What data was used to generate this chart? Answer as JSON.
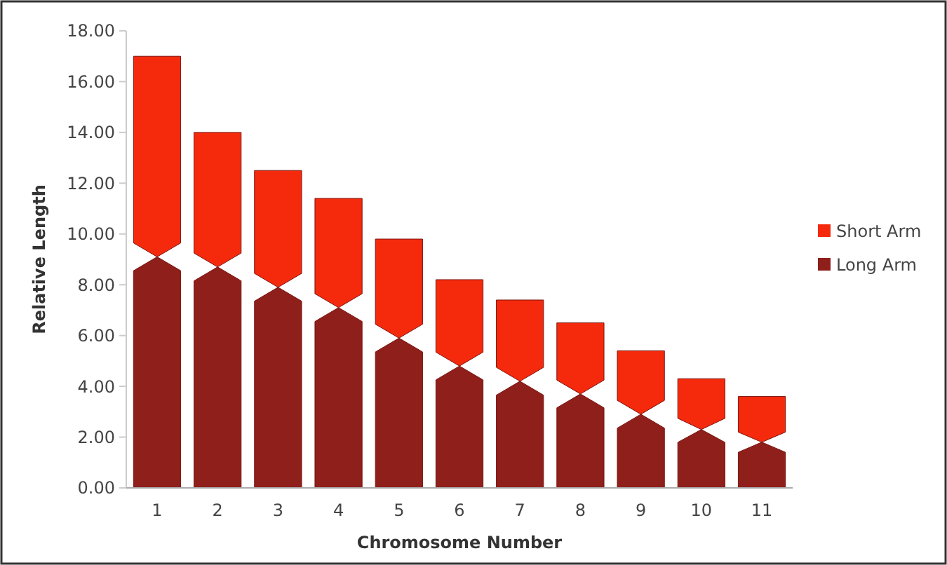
{
  "chart_data": {
    "type": "bar",
    "stacked": true,
    "xlabel": "Chromosome Number",
    "ylabel": "Relative Length",
    "categories": [
      "1",
      "2",
      "3",
      "4",
      "5",
      "6",
      "7",
      "8",
      "9",
      "10",
      "11"
    ],
    "series": [
      {
        "name": "Long Arm",
        "color": "#8e1f1a",
        "values": [
          9.1,
          8.7,
          7.9,
          7.1,
          5.9,
          4.8,
          4.2,
          3.7,
          2.9,
          2.3,
          1.8
        ]
      },
      {
        "name": "Short Arm",
        "color": "#f52a0c",
        "values": [
          7.9,
          5.3,
          4.6,
          4.3,
          3.9,
          3.4,
          3.2,
          2.8,
          2.5,
          2.0,
          1.8
        ]
      }
    ],
    "ylim": [
      0,
      18
    ],
    "yticks": [
      {
        "value": 0,
        "label": "0.00"
      },
      {
        "value": 2,
        "label": "2.00"
      },
      {
        "value": 4,
        "label": "4.00"
      },
      {
        "value": 6,
        "label": "6.00"
      },
      {
        "value": 8,
        "label": "8.00"
      },
      {
        "value": 10,
        "label": "10.00"
      },
      {
        "value": 12,
        "label": "12.00"
      },
      {
        "value": 14,
        "label": "14.00"
      },
      {
        "value": 16,
        "label": "16.00"
      },
      {
        "value": 18,
        "label": "18.00"
      }
    ],
    "grid": false,
    "legend": "right"
  }
}
